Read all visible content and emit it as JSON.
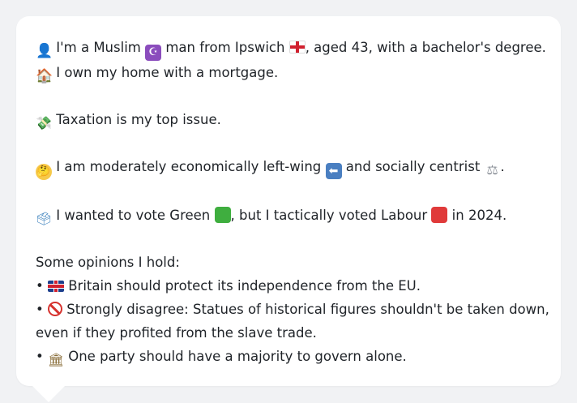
{
  "profile": {
    "line1": {
      "person_icon": "👤",
      "part1": "I'm a Muslim",
      "religion_icon": "☪",
      "part2": "man from Ipswich",
      "part3": ", aged 43, with a bachelor's degree."
    },
    "line2": {
      "house_icon": "🏠",
      "text": "I own my home with a mortgage."
    },
    "line3": {
      "money_icon": "💸",
      "text": "Taxation is my top issue."
    },
    "line4": {
      "thinking_icon": "🤔",
      "part1": "I am moderately economically left-wing",
      "left_arrow_icon": "⬅",
      "part2": "and socially centrist",
      "scales_icon": "⚖",
      "part3": "."
    },
    "line5": {
      "ballot_icon": "🗳",
      "part1": "I wanted to vote Green",
      "part2": ", but I tactically voted Labour",
      "part3": "in 2024."
    }
  },
  "opinions": {
    "heading": "Some opinions I hold:",
    "bullet": "•",
    "items": [
      {
        "text": "Britain should protect its independence from the EU."
      },
      {
        "icon": "🚫",
        "line_a": "Strongly disagree: Statues of historical figures shouldn't be taken down,",
        "line_b": "even if they profited from the slave trade."
      },
      {
        "icon": "🏛",
        "text": "One party should have a majority to govern alone."
      }
    ]
  },
  "colors": {
    "green_square": "#3fae3f",
    "red_square": "#e03a3a",
    "card_background": "#ffffff",
    "page_background": "#f1f2f4"
  }
}
